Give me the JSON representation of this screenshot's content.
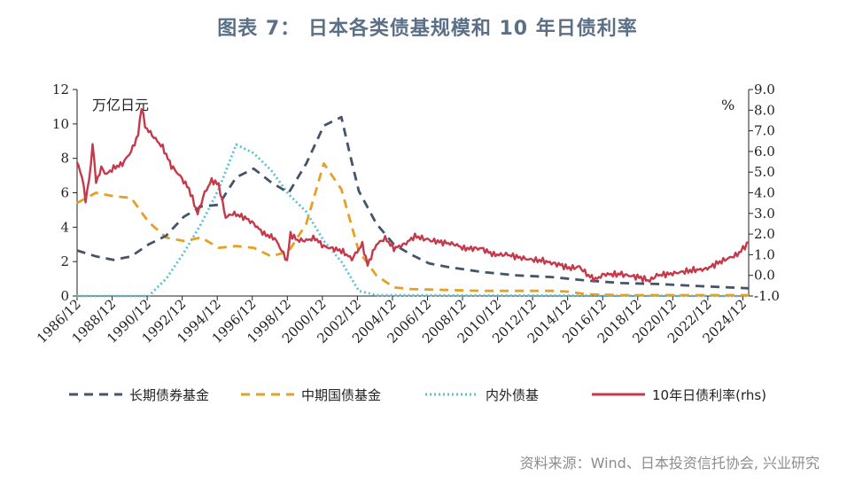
{
  "title": "图表 7： 日本各类债基规模和 10 年日债利率",
  "source": "资料来源：Wind、日本投资信托协会, 兴业研究",
  "chart_data": {
    "type": "line",
    "left_unit": "万亿日元",
    "right_unit": "%",
    "x_start_year": 1986.917,
    "x_end_year": 2025.25,
    "x_ticks": [
      "1986/12",
      "1988/12",
      "1990/12",
      "1992/12",
      "1994/12",
      "1996/12",
      "1998/12",
      "2000/12",
      "2002/12",
      "2004/12",
      "2006/12",
      "2008/12",
      "2010/12",
      "2012/12",
      "2014/12",
      "2016/12",
      "2018/12",
      "2020/12",
      "2022/12",
      "2024/12"
    ],
    "ylim_left": [
      0,
      12
    ],
    "yticks_left": [
      "0",
      "2",
      "4",
      "6",
      "8",
      "10",
      "12"
    ],
    "ylim_right": [
      -1,
      9
    ],
    "yticks_right": [
      "-1.0",
      "0.0",
      "1.0",
      "2.0",
      "3.0",
      "4.0",
      "5.0",
      "6.0",
      "7.0",
      "8.0",
      "9.0"
    ],
    "legend_position": "bottom",
    "series": [
      {
        "name": "长期债券基金",
        "axis": "left",
        "color": "#44546a",
        "style": "dash",
        "points": [
          [
            1986.9,
            2.65
          ],
          [
            1988,
            2.3
          ],
          [
            1989,
            2.1
          ],
          [
            1990,
            2.3
          ],
          [
            1991,
            3.0
          ],
          [
            1992,
            3.5
          ],
          [
            1993,
            4.6
          ],
          [
            1994,
            5.2
          ],
          [
            1995,
            5.3
          ],
          [
            1996,
            6.9
          ],
          [
            1997,
            7.4
          ],
          [
            1998,
            6.6
          ],
          [
            1999,
            6.0
          ],
          [
            2000,
            7.7
          ],
          [
            2001,
            9.9
          ],
          [
            2002,
            10.4
          ],
          [
            2002.5,
            8.2
          ],
          [
            2003,
            6.1
          ],
          [
            2004,
            4.2
          ],
          [
            2005,
            3.0
          ],
          [
            2006,
            2.4
          ],
          [
            2007,
            1.9
          ],
          [
            2008,
            1.7
          ],
          [
            2010,
            1.4
          ],
          [
            2012,
            1.2
          ],
          [
            2014,
            1.1
          ],
          [
            2016,
            0.9
          ],
          [
            2018,
            0.75
          ],
          [
            2020,
            0.7
          ],
          [
            2022,
            0.6
          ],
          [
            2025.25,
            0.45
          ]
        ]
      },
      {
        "name": "中期国债基金",
        "axis": "left",
        "color": "#e3a126",
        "style": "dash",
        "points": [
          [
            1986.9,
            5.4
          ],
          [
            1988,
            6.0
          ],
          [
            1989,
            5.8
          ],
          [
            1990,
            5.7
          ],
          [
            1991,
            4.3
          ],
          [
            1992,
            3.4
          ],
          [
            1993,
            3.2
          ],
          [
            1994,
            3.4
          ],
          [
            1995,
            2.8
          ],
          [
            1996,
            2.9
          ],
          [
            1997,
            2.8
          ],
          [
            1998,
            2.3
          ],
          [
            1999,
            2.6
          ],
          [
            2000,
            4.2
          ],
          [
            2001,
            7.7
          ],
          [
            2002,
            6.2
          ],
          [
            2003,
            2.6
          ],
          [
            2004,
            1.2
          ],
          [
            2005,
            0.5
          ],
          [
            2006,
            0.4
          ],
          [
            2008,
            0.35
          ],
          [
            2010,
            0.3
          ],
          [
            2012,
            0.3
          ],
          [
            2014,
            0.3
          ],
          [
            2015,
            0.25
          ],
          [
            2016,
            0.1
          ],
          [
            2018,
            0.05
          ],
          [
            2025.25,
            0.05
          ]
        ]
      },
      {
        "name": "内外债基",
        "axis": "left",
        "color": "#5bc2cf",
        "style": "dot",
        "points": [
          [
            1986.9,
            0
          ],
          [
            1991,
            0
          ],
          [
            1992,
            1.0
          ],
          [
            1993,
            2.5
          ],
          [
            1994,
            4.2
          ],
          [
            1995,
            6.2
          ],
          [
            1996,
            8.8
          ],
          [
            1997,
            8.3
          ],
          [
            1998,
            7.3
          ],
          [
            1999,
            5.9
          ],
          [
            2000,
            4.9
          ],
          [
            2001,
            3.2
          ],
          [
            2002,
            2.0
          ],
          [
            2003,
            0.3
          ],
          [
            2004,
            0.05
          ],
          [
            2025.25,
            0
          ]
        ]
      },
      {
        "name": "10年日债利率(rhs)",
        "axis": "right",
        "color": "#c5394a",
        "style": "solid",
        "points": [
          [
            1986.9,
            5.5
          ],
          [
            1987.2,
            4.8
          ],
          [
            1987.4,
            3.6
          ],
          [
            1987.7,
            5.2
          ],
          [
            1987.8,
            6.5
          ],
          [
            1988,
            4.5
          ],
          [
            1988.3,
            5.2
          ],
          [
            1988.6,
            4.9
          ],
          [
            1989,
            5.2
          ],
          [
            1989.5,
            5.4
          ],
          [
            1990,
            6.0
          ],
          [
            1990.4,
            6.8
          ],
          [
            1990.6,
            8.2
          ],
          [
            1990.8,
            7.2
          ],
          [
            1991.3,
            6.7
          ],
          [
            1991.8,
            6.2
          ],
          [
            1992.3,
            5.3
          ],
          [
            1992.8,
            4.8
          ],
          [
            1993.3,
            4.2
          ],
          [
            1993.8,
            3.0
          ],
          [
            1994.2,
            4.0
          ],
          [
            1994.6,
            4.6
          ],
          [
            1995,
            4.4
          ],
          [
            1995.4,
            2.8
          ],
          [
            1995.8,
            3.0
          ],
          [
            1996.5,
            2.8
          ],
          [
            1997,
            2.5
          ],
          [
            1997.6,
            2.0
          ],
          [
            1998.2,
            1.8
          ],
          [
            1998.6,
            1.2
          ],
          [
            1998.9,
            0.7
          ],
          [
            1999.1,
            2.0
          ],
          [
            1999.5,
            1.7
          ],
          [
            2000,
            1.7
          ],
          [
            2000.5,
            1.8
          ],
          [
            2001,
            1.4
          ],
          [
            2001.5,
            1.3
          ],
          [
            2002,
            1.2
          ],
          [
            2002.6,
            0.8
          ],
          [
            2003.2,
            1.5
          ],
          [
            2003.5,
            0.5
          ],
          [
            2004,
            1.5
          ],
          [
            2004.5,
            1.8
          ],
          [
            2005,
            1.3
          ],
          [
            2005.6,
            1.5
          ],
          [
            2006.2,
            1.9
          ],
          [
            2007,
            1.7
          ],
          [
            2007.8,
            1.6
          ],
          [
            2008.5,
            1.5
          ],
          [
            2009,
            1.3
          ],
          [
            2010,
            1.3
          ],
          [
            2010.7,
            1.0
          ],
          [
            2011.5,
            1.0
          ],
          [
            2012.5,
            0.8
          ],
          [
            2013.5,
            0.7
          ],
          [
            2014.5,
            0.5
          ],
          [
            2015,
            0.35
          ],
          [
            2015.6,
            0.4
          ],
          [
            2016.1,
            0.0
          ],
          [
            2016.5,
            -0.2
          ],
          [
            2017,
            0.05
          ],
          [
            2018,
            0.05
          ],
          [
            2019,
            -0.1
          ],
          [
            2019.6,
            -0.25
          ],
          [
            2020,
            0.0
          ],
          [
            2021,
            0.1
          ],
          [
            2022,
            0.25
          ],
          [
            2022.8,
            0.3
          ],
          [
            2023.5,
            0.6
          ],
          [
            2024,
            0.8
          ],
          [
            2024.6,
            1.0
          ],
          [
            2025.25,
            1.6
          ]
        ]
      }
    ]
  }
}
